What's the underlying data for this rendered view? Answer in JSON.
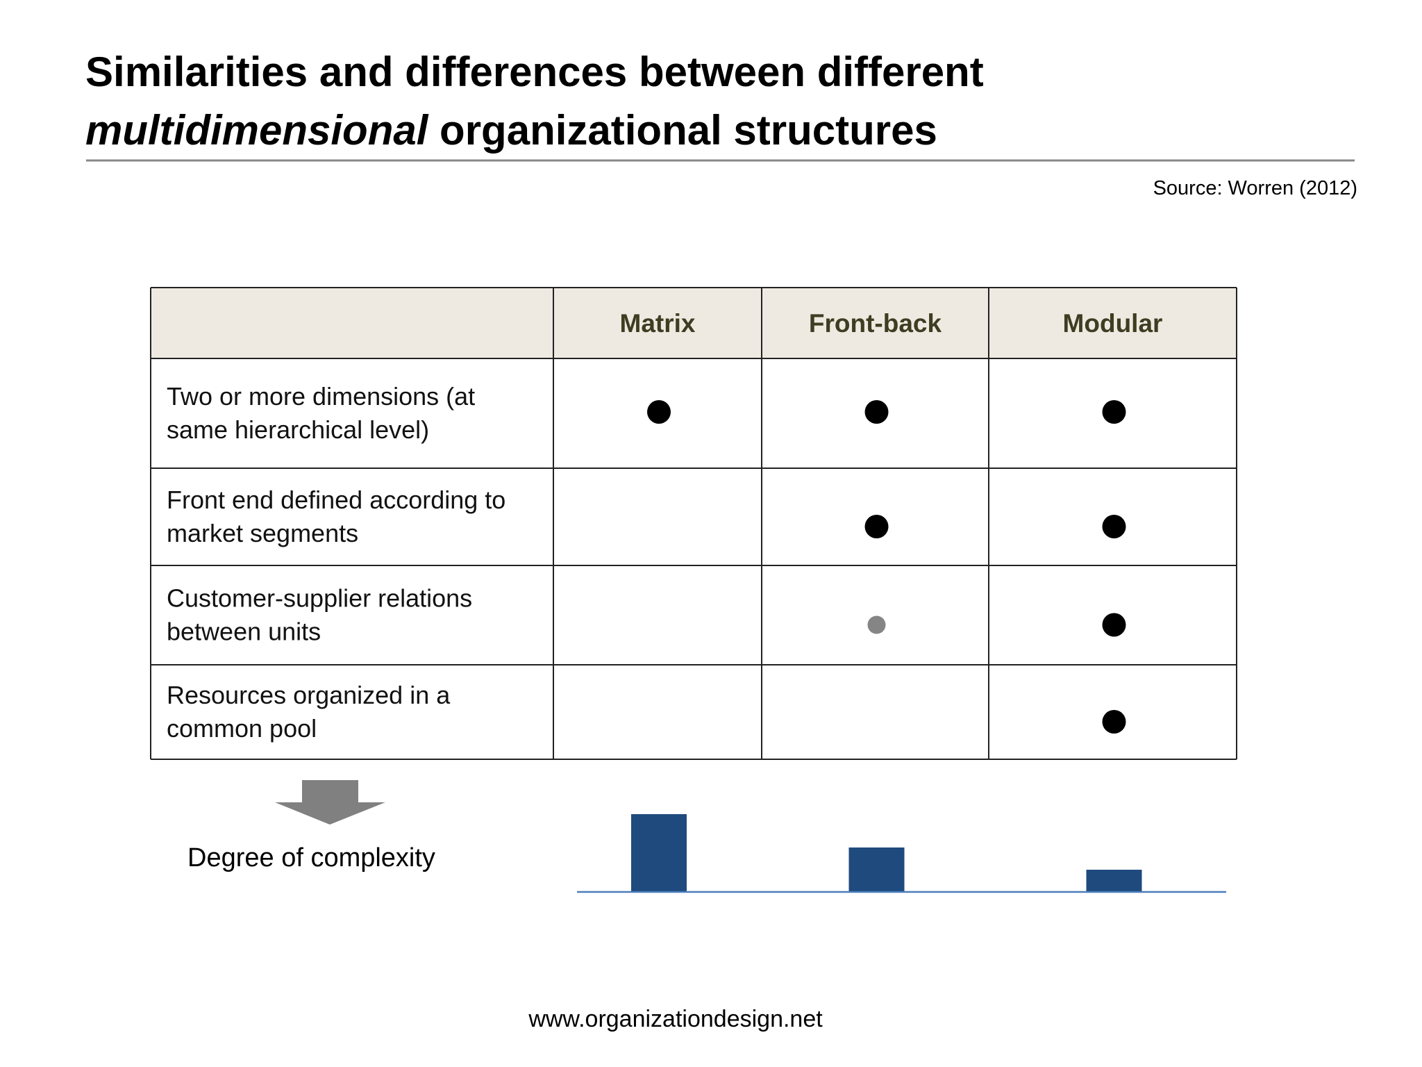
{
  "header": {
    "title_line1": "Similarities and differences between different",
    "title_italic": "multidimensional",
    "title_rest": " organizational structures",
    "source": "Source: Worren (2012)"
  },
  "table": {
    "columns": [
      "Matrix",
      "Front-back",
      "Modular"
    ],
    "rows": [
      {
        "label": "Two or more dimensions (at same hierarchical level)",
        "cells": [
          "full",
          "full",
          "full"
        ]
      },
      {
        "label": "Front end defined according to market segments",
        "cells": [
          null,
          "full",
          "full"
        ]
      },
      {
        "label": "Customer-supplier relations between units",
        "cells": [
          null,
          "partial",
          "full"
        ]
      },
      {
        "label": "Resources organized in a common pool",
        "cells": [
          null,
          null,
          "full"
        ]
      }
    ]
  },
  "complexity_label": "Degree of complexity",
  "chart_data": {
    "type": "bar",
    "values": [
      3.5,
      2,
      1
    ],
    "color": "#1f4a7e"
  },
  "footer": "www.organizationdesign.net"
}
